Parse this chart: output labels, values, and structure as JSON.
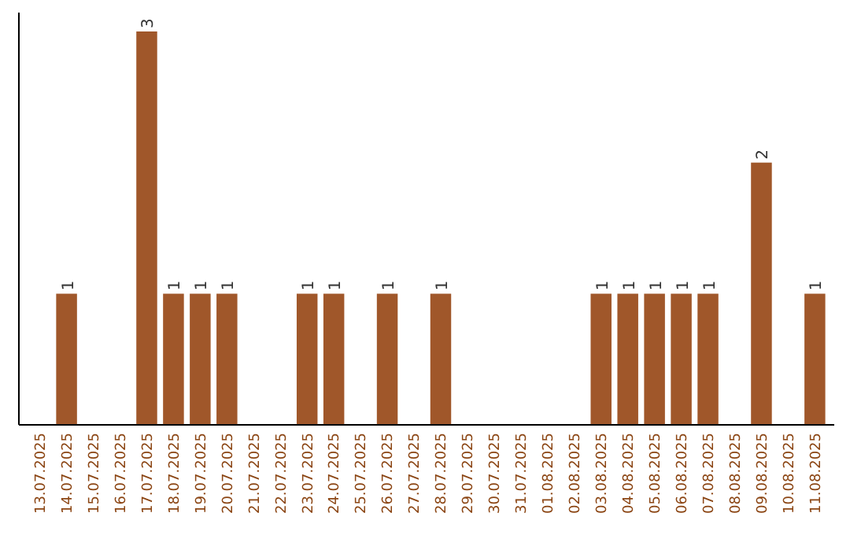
{
  "chart_data": {
    "type": "bar",
    "categories": [
      "13.07.2025",
      "14.07.2025",
      "15.07.2025",
      "16.07.2025",
      "17.07.2025",
      "18.07.2025",
      "19.07.2025",
      "20.07.2025",
      "21.07.2025",
      "22.07.2025",
      "23.07.2025",
      "24.07.2025",
      "25.07.2025",
      "26.07.2025",
      "27.07.2025",
      "28.07.2025",
      "29.07.2025",
      "30.07.2025",
      "31.07.2025",
      "01.08.2025",
      "02.08.2025",
      "03.08.2025",
      "04.08.2025",
      "05.08.2025",
      "06.08.2025",
      "07.08.2025",
      "08.08.2025",
      "09.08.2025",
      "10.08.2025",
      "11.08.2025"
    ],
    "values": [
      0,
      1,
      0,
      0,
      3,
      1,
      1,
      1,
      0,
      0,
      1,
      1,
      0,
      1,
      0,
      1,
      0,
      0,
      0,
      0,
      0,
      1,
      1,
      1,
      1,
      1,
      0,
      2,
      0,
      1
    ],
    "value_labels": [
      null,
      "1",
      null,
      null,
      "3",
      "1",
      "1",
      "1",
      null,
      null,
      "1",
      "1",
      null,
      "1",
      null,
      "1",
      null,
      null,
      null,
      null,
      null,
      "1",
      "1",
      "1",
      "1",
      "1",
      null,
      "2",
      null,
      "1"
    ],
    "color": "#a0572a",
    "ylim": [
      0,
      3
    ],
    "tick_labels": "x"
  }
}
